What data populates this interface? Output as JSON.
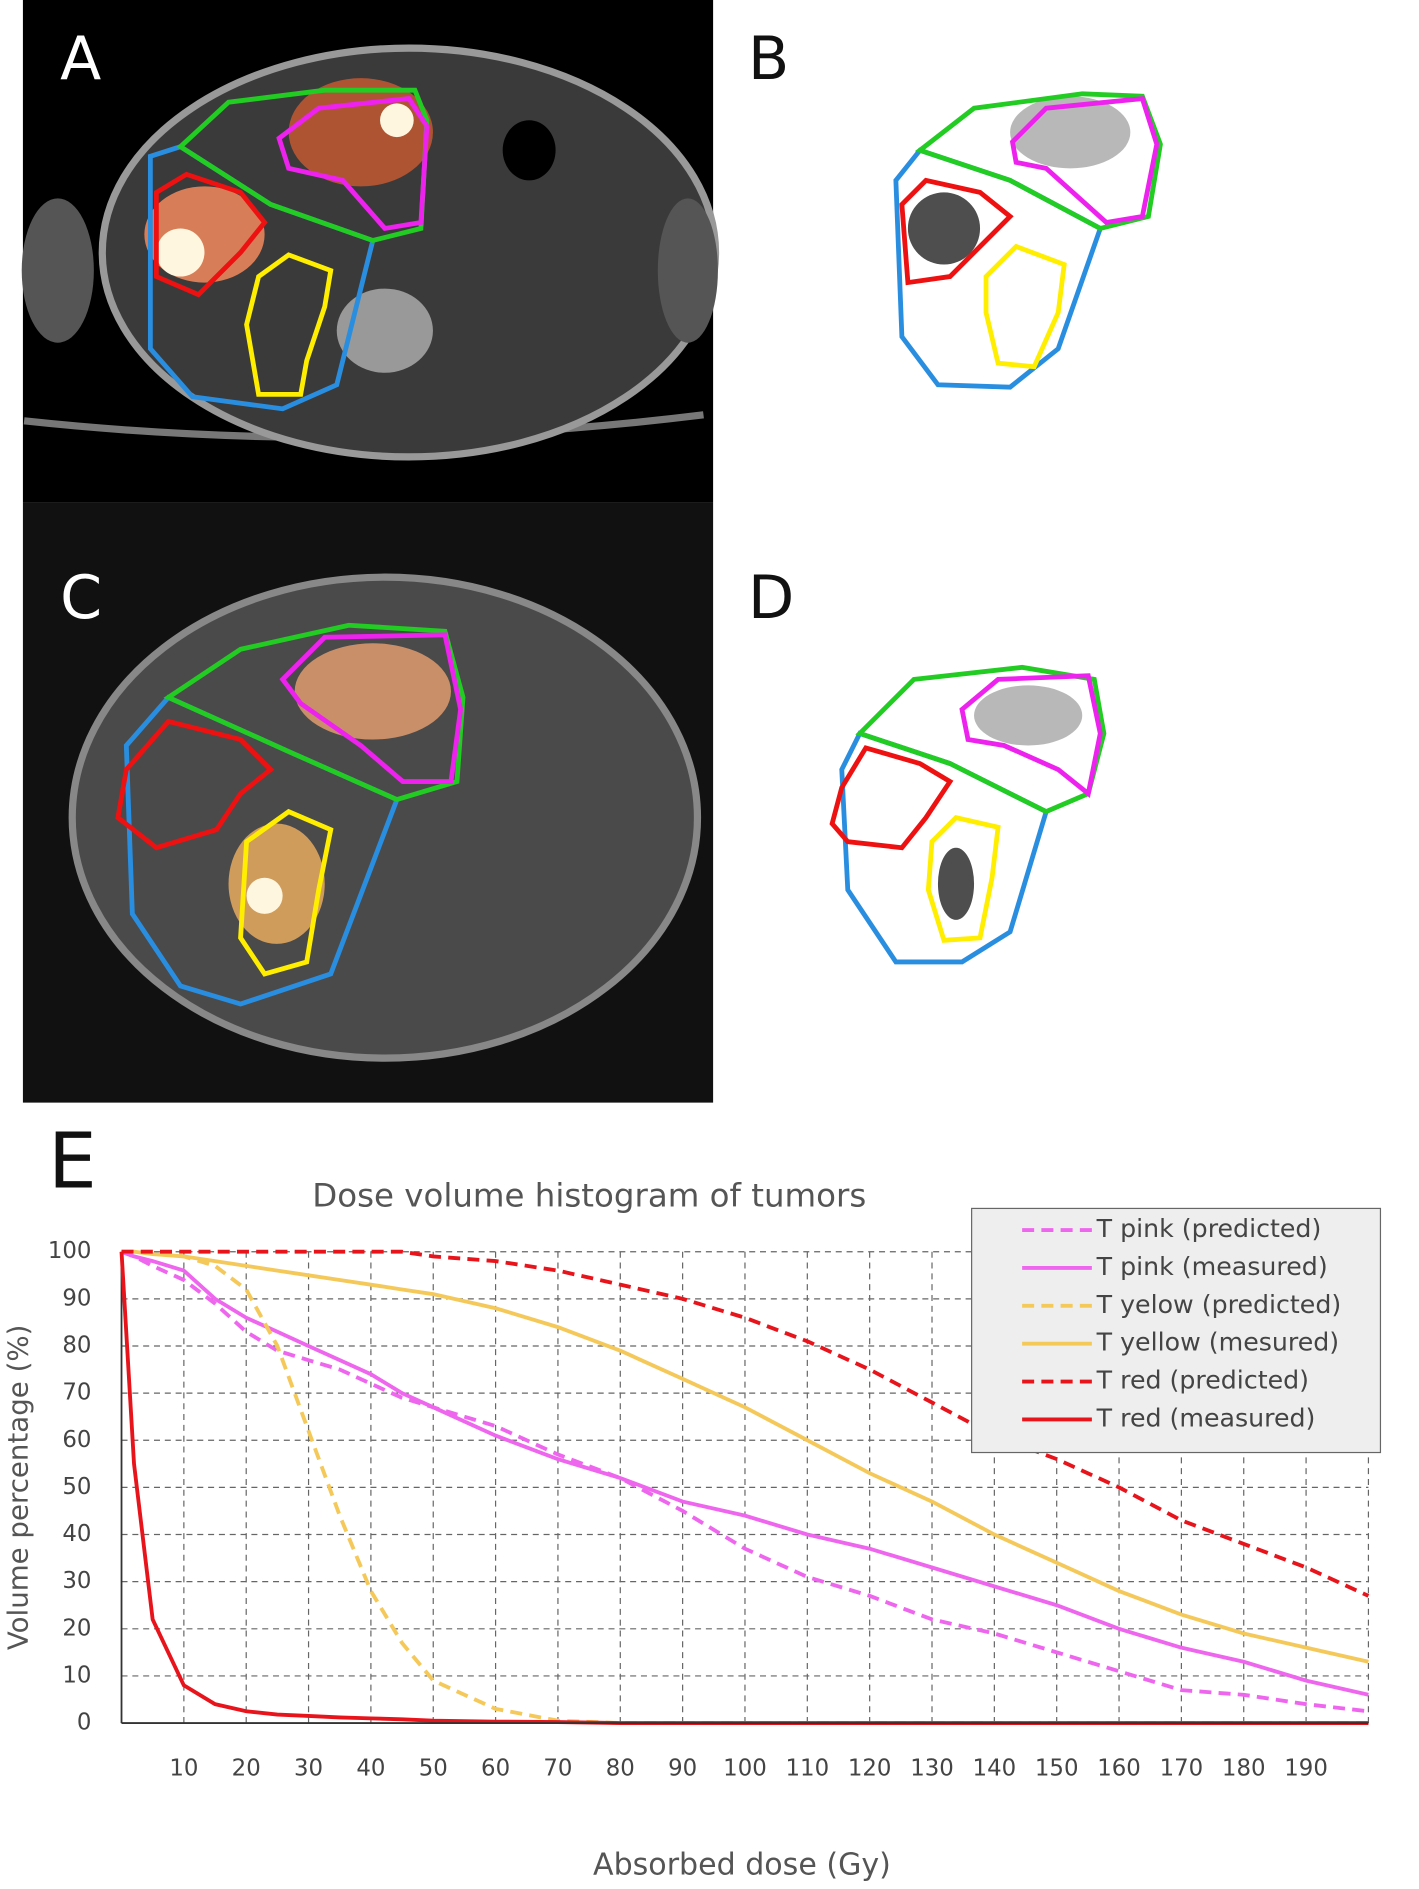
{
  "panel_labels": [
    "A",
    "B",
    "C",
    "D"
  ],
  "chart_data": {
    "type": "line",
    "label": "E",
    "title": "Dose volume histogram of tumors",
    "x_label": "Absorbed dose (Gy)",
    "y_label": "Volume percentage (%)",
    "x": [
      0,
      2,
      5,
      10,
      15,
      20,
      25,
      30,
      35,
      40,
      45,
      50,
      60,
      70,
      80,
      90,
      100,
      110,
      120,
      130,
      140,
      150,
      160,
      170,
      180,
      190,
      200
    ],
    "series": [
      {
        "name": "T pink (predicted)",
        "color": "#ee66ee",
        "style": "dashed",
        "values": [
          100,
          99,
          97,
          94,
          89,
          83,
          79,
          77,
          75,
          72,
          69,
          67,
          63,
          57,
          52,
          45,
          37,
          31,
          27,
          22,
          19,
          15,
          11,
          7,
          6,
          4,
          2.5
        ]
      },
      {
        "name": "T pink (measured)",
        "color": "#ee66ee",
        "style": "solid",
        "values": [
          100,
          99,
          98,
          96,
          90,
          86,
          83,
          80,
          77,
          74,
          70,
          67,
          61,
          56,
          52,
          47,
          44,
          40,
          37,
          33,
          29,
          25,
          20,
          16,
          13,
          9,
          6
        ]
      },
      {
        "name": "T yelow (predicted)",
        "color": "#f5c85a",
        "style": "dashed",
        "values": [
          100,
          100,
          100,
          99,
          97,
          92,
          80,
          62,
          44,
          28,
          17,
          9,
          3,
          0.5,
          0,
          0,
          0,
          0,
          0,
          0,
          0,
          0,
          0,
          0,
          0,
          0,
          0
        ]
      },
      {
        "name": "T yellow (mesured)",
        "color": "#f5c85a",
        "style": "solid",
        "values": [
          100,
          100,
          99.5,
          99,
          98,
          97,
          96,
          95,
          94,
          93,
          92,
          91,
          88,
          84,
          79,
          73,
          67,
          60,
          53,
          47,
          40,
          34,
          28,
          23,
          19,
          16,
          13
        ]
      },
      {
        "name": "T red (predicted)",
        "color": "#e8141c",
        "style": "dashed",
        "values": [
          100,
          100,
          100,
          100,
          100,
          100,
          100,
          100,
          100,
          100,
          100,
          99,
          98,
          96,
          93,
          90,
          86,
          81,
          75,
          68,
          61,
          56,
          50,
          43,
          38,
          33,
          27
        ]
      },
      {
        "name": "T red (measured)",
        "color": "#e8141c",
        "style": "solid",
        "values": [
          100,
          55,
          22,
          8,
          4,
          2.5,
          1.8,
          1.5,
          1.2,
          1,
          0.8,
          0.5,
          0.3,
          0.2,
          0,
          0,
          0,
          0,
          0,
          0,
          0,
          0,
          0,
          0,
          0,
          0,
          0
        ]
      }
    ],
    "xlim": [
      0,
      200
    ],
    "xticks": [
      10,
      20,
      30,
      40,
      50,
      60,
      70,
      80,
      90,
      100,
      110,
      120,
      130,
      140,
      150,
      160,
      170,
      180,
      190
    ],
    "ylim": [
      0,
      100
    ],
    "yticks": [
      0,
      10,
      20,
      30,
      40,
      50,
      60,
      70,
      80,
      90,
      100
    ],
    "grid": true,
    "legend": "top-right"
  }
}
